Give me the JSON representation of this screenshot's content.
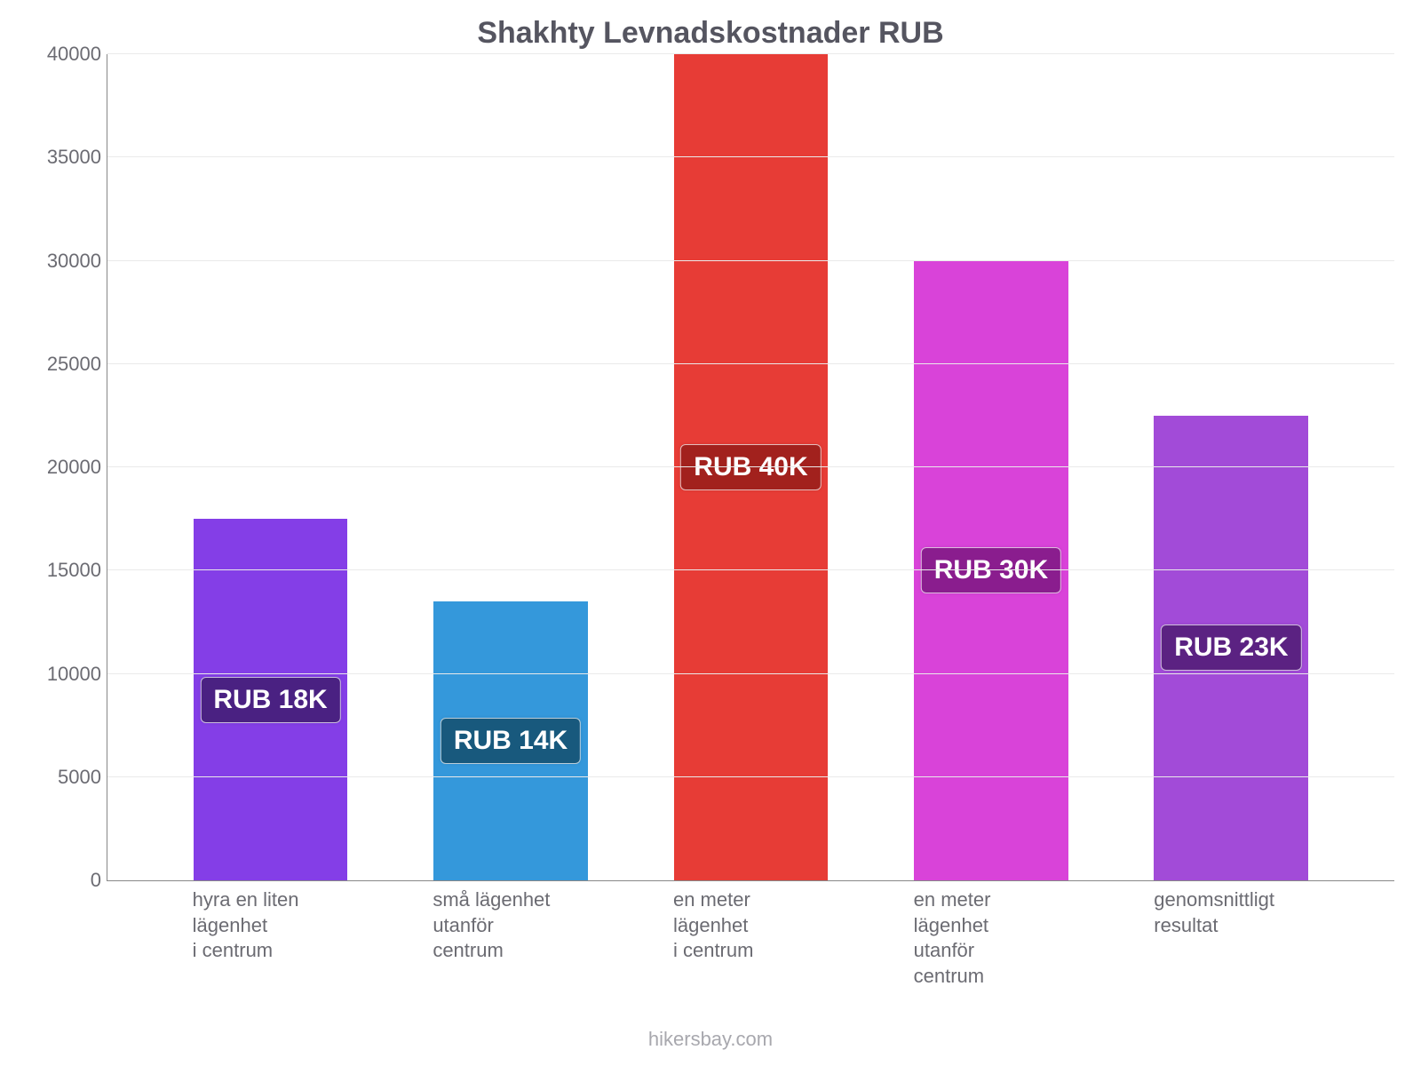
{
  "chart": {
    "type": "bar",
    "title": "Shakhty Levnadskostnader RUB",
    "title_fontsize": 34,
    "title_color": "#555560",
    "background_color": "#ffffff",
    "grid_color": "#eaeaea",
    "axis_color": "#888888",
    "tick_fontsize": 22,
    "tick_color": "#6b6b72",
    "ylim": [
      0,
      40000
    ],
    "ytick_step": 5000,
    "yticks": [
      0,
      5000,
      10000,
      15000,
      20000,
      25000,
      30000,
      35000,
      40000
    ],
    "bar_width_pct": 12,
    "label_fontsize": 22,
    "label_color": "#6b6b72",
    "categories": [
      [
        "hyra en liten lägenhet",
        "i centrum"
      ],
      [
        "små lägenhet",
        "utanför",
        "centrum"
      ],
      [
        "en meter lägenhet",
        "i centrum"
      ],
      [
        "en meter lägenhet",
        "utanför",
        "centrum"
      ],
      [
        "genomsnittligt",
        "resultat"
      ]
    ],
    "values": [
      17500,
      13500,
      40000,
      30000,
      22500
    ],
    "bar_colors": [
      "#843ee7",
      "#3498db",
      "#e73c36",
      "#d943d9",
      "#a24bd8"
    ],
    "data_labels": [
      "RUB 18K",
      "RUB 14K",
      "RUB 40K",
      "RUB 30K",
      "RUB 23K"
    ],
    "data_label_bg": [
      "#4a2182",
      "#18597d",
      "#a2211d",
      "#8a1d8e",
      "#5b2282"
    ],
    "data_label_color": "#ffffff",
    "data_label_fontsize": 30
  },
  "source": "hikersbay.com",
  "source_color": "#a8a8ae",
  "source_fontsize": 22
}
